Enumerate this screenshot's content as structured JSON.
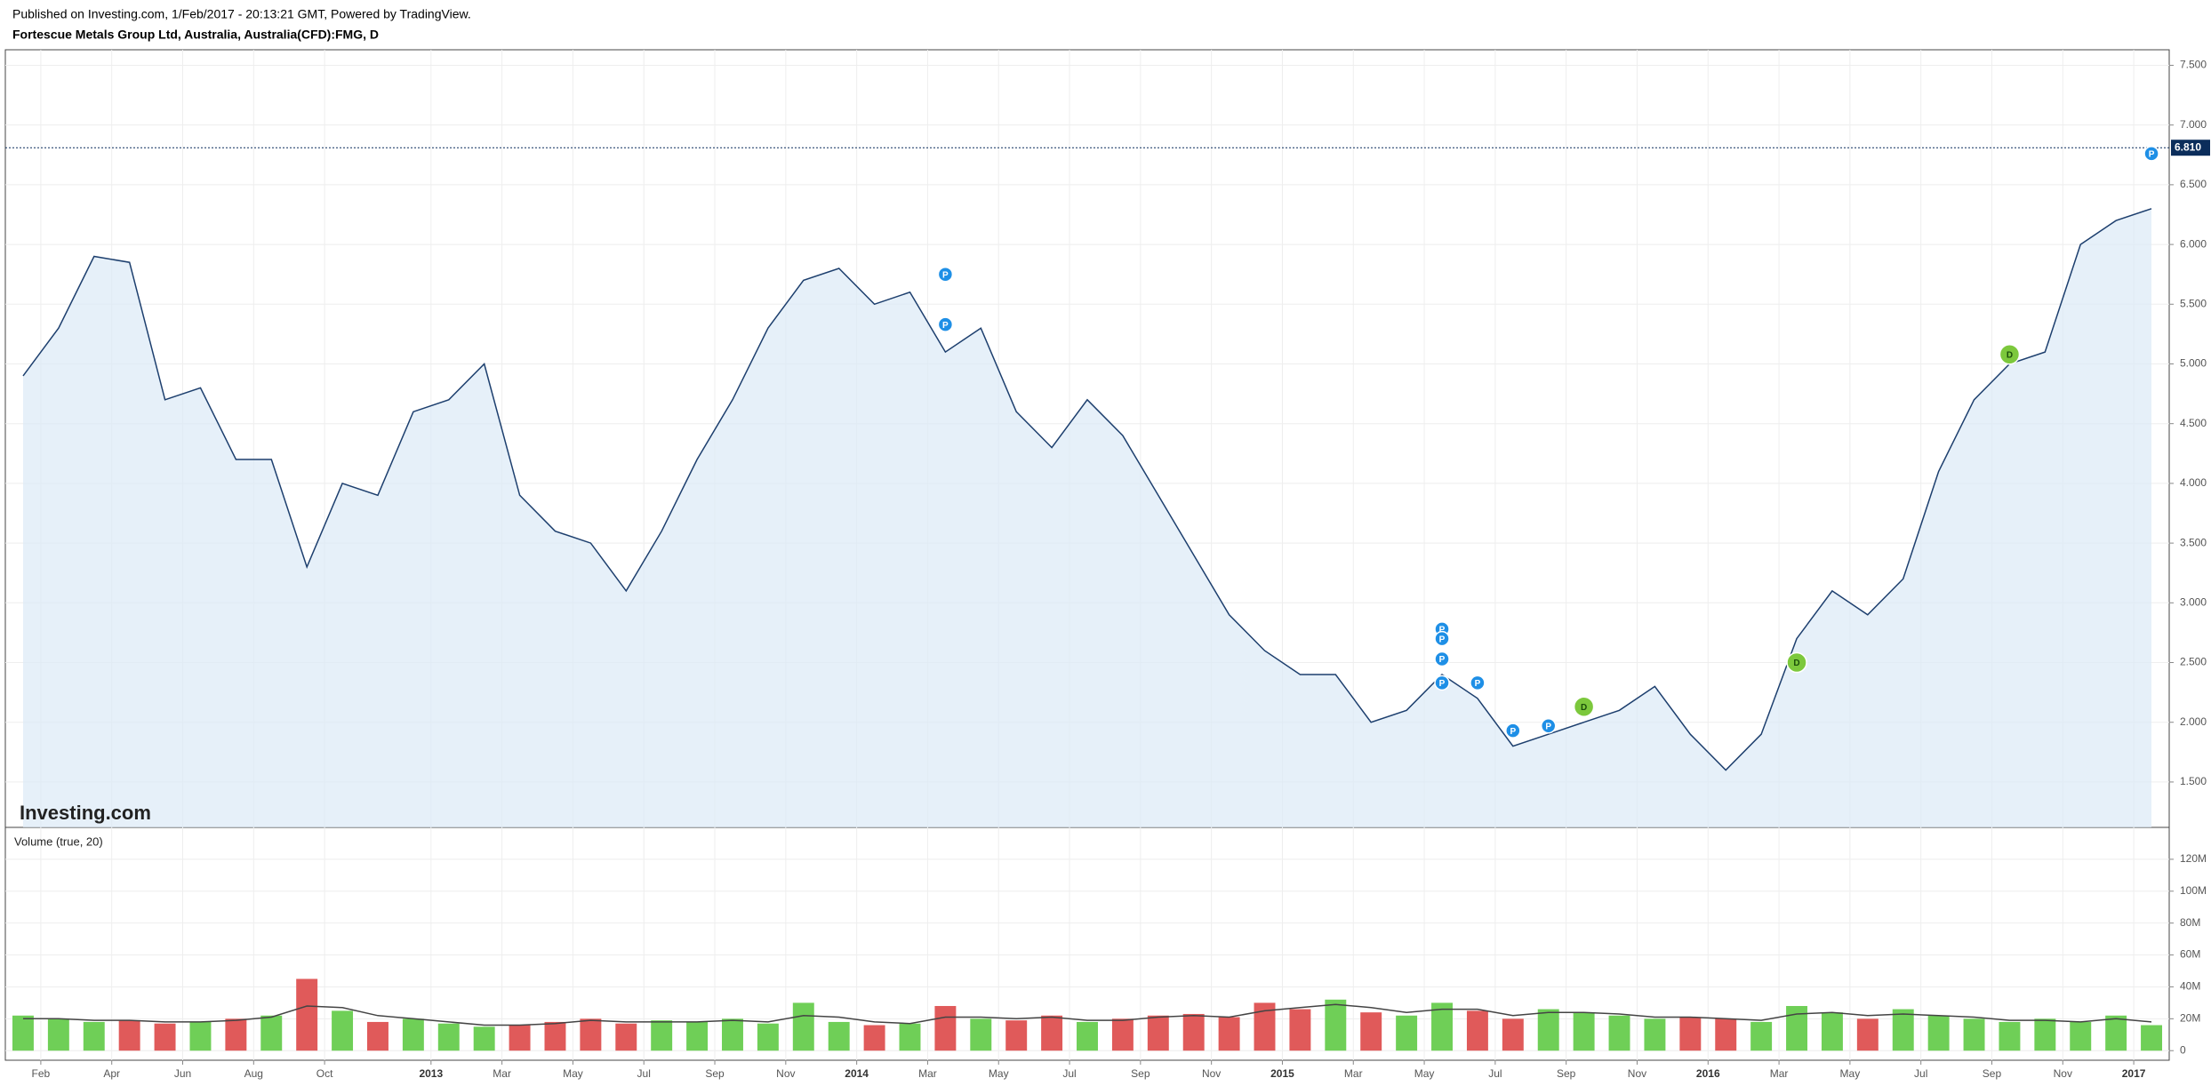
{
  "header": {
    "published": "Published on Investing.com, 1/Feb/2017 - 20:13:21 GMT, Powered by TradingView.",
    "title": "Fortescue Metals Group Ltd, Australia, Australia(CFD):FMG, D"
  },
  "logo": "Investing.com",
  "chart_data": [
    {
      "type": "area",
      "color": "#1d3f6e",
      "fill": "#dce9f7",
      "xlim": [
        "2012-01",
        "2017-02"
      ],
      "x": [
        "2012-01",
        "2012-02",
        "2012-03",
        "2012-04",
        "2012-05",
        "2012-06",
        "2012-07",
        "2012-08",
        "2012-09",
        "2012-10",
        "2012-11",
        "2012-12",
        "2013-01",
        "2013-02",
        "2013-03",
        "2013-04",
        "2013-05",
        "2013-06",
        "2013-07",
        "2013-08",
        "2013-09",
        "2013-10",
        "2013-11",
        "2013-12",
        "2014-01",
        "2014-02",
        "2014-03",
        "2014-04",
        "2014-05",
        "2014-06",
        "2014-07",
        "2014-08",
        "2014-09",
        "2014-10",
        "2014-11",
        "2014-12",
        "2015-01",
        "2015-02",
        "2015-03",
        "2015-04",
        "2015-05",
        "2015-06",
        "2015-07",
        "2015-08",
        "2015-09",
        "2015-10",
        "2015-11",
        "2015-12",
        "2016-01",
        "2016-02",
        "2016-03",
        "2016-04",
        "2016-05",
        "2016-06",
        "2016-07",
        "2016-08",
        "2016-09",
        "2016-10",
        "2016-11",
        "2016-12",
        "2017-01"
      ],
      "values": [
        4.9,
        5.3,
        5.9,
        5.85,
        4.7,
        4.8,
        4.2,
        4.2,
        3.3,
        4.0,
        3.9,
        4.6,
        4.7,
        5.0,
        3.9,
        3.6,
        3.5,
        3.1,
        3.6,
        4.2,
        4.7,
        5.3,
        5.7,
        5.8,
        5.5,
        5.6,
        5.1,
        5.3,
        4.6,
        4.3,
        4.7,
        4.4,
        3.9,
        3.4,
        2.9,
        2.6,
        2.4,
        2.4,
        2.0,
        2.1,
        2.4,
        2.2,
        1.8,
        1.9,
        2.0,
        2.1,
        2.3,
        1.9,
        1.6,
        1.9,
        2.7,
        3.1,
        2.9,
        3.2,
        4.1,
        4.7,
        5.0,
        5.1,
        6.0,
        6.2,
        6.3
      ],
      "ylim": [
        1.12,
        7.63
      ],
      "yticks": [
        {
          "value": 1.5,
          "label": "1.500"
        },
        {
          "value": 2,
          "label": "2.000"
        },
        {
          "value": 2.5,
          "label": "2.500"
        },
        {
          "value": 3,
          "label": "3.000"
        },
        {
          "value": 3.5,
          "label": "3.500"
        },
        {
          "value": 4,
          "label": "4.000"
        },
        {
          "value": 4.5,
          "label": "4.500"
        },
        {
          "value": 5,
          "label": "5.000"
        },
        {
          "value": 5.5,
          "label": "5.500"
        },
        {
          "value": 6,
          "label": "6.000"
        },
        {
          "value": 6.5,
          "label": "6.500"
        },
        {
          "value": 7,
          "label": "7.000"
        },
        {
          "value": 7.5,
          "label": "7.500"
        }
      ],
      "grid": true,
      "price_line": {
        "value": 6.81,
        "label": "6.810",
        "color": "#0b2d5b"
      },
      "events": [
        {
          "x": "2014-03",
          "y": 5.75,
          "label": "P",
          "color": "#1e8fe6"
        },
        {
          "x": "2014-03",
          "y": 5.33,
          "label": "P",
          "color": "#1e8fe6"
        },
        {
          "x": "2015-05",
          "y": 2.78,
          "label": "P",
          "color": "#1e8fe6"
        },
        {
          "x": "2015-05",
          "y": 2.7,
          "label": "P",
          "color": "#1e8fe6"
        },
        {
          "x": "2015-05",
          "y": 2.53,
          "label": "P",
          "color": "#1e8fe6"
        },
        {
          "x": "2015-05",
          "y": 2.33,
          "label": "P",
          "color": "#1e8fe6"
        },
        {
          "x": "2015-06",
          "y": 2.33,
          "label": "P",
          "color": "#1e8fe6"
        },
        {
          "x": "2015-07",
          "y": 1.93,
          "label": "P",
          "color": "#1e8fe6"
        },
        {
          "x": "2015-08",
          "y": 1.97,
          "label": "P",
          "color": "#1e8fe6"
        },
        {
          "x": "2015-09",
          "y": 2.13,
          "label": "D",
          "color": "#7cc83c"
        },
        {
          "x": "2016-03",
          "y": 2.5,
          "label": "D",
          "color": "#7cc83c"
        },
        {
          "x": "2016-09",
          "y": 5.08,
          "label": "D",
          "color": "#7cc83c"
        },
        {
          "x": "2017-01",
          "y": 6.76,
          "label": "P",
          "color": "#1e8fe6"
        }
      ]
    },
    {
      "type": "bar",
      "title": "Volume (true, 20)",
      "up_color": "#6fcf57",
      "down_color": "#e05a5a",
      "ma_color": "#444444",
      "xlim": [
        "2012-01",
        "2017-02"
      ],
      "x": [
        "2012-01",
        "2012-02",
        "2012-03",
        "2012-04",
        "2012-05",
        "2012-06",
        "2012-07",
        "2012-08",
        "2012-09",
        "2012-10",
        "2012-11",
        "2012-12",
        "2013-01",
        "2013-02",
        "2013-03",
        "2013-04",
        "2013-05",
        "2013-06",
        "2013-07",
        "2013-08",
        "2013-09",
        "2013-10",
        "2013-11",
        "2013-12",
        "2014-01",
        "2014-02",
        "2014-03",
        "2014-04",
        "2014-05",
        "2014-06",
        "2014-07",
        "2014-08",
        "2014-09",
        "2014-10",
        "2014-11",
        "2014-12",
        "2015-01",
        "2015-02",
        "2015-03",
        "2015-04",
        "2015-05",
        "2015-06",
        "2015-07",
        "2015-08",
        "2015-09",
        "2015-10",
        "2015-11",
        "2015-12",
        "2016-01",
        "2016-02",
        "2016-03",
        "2016-04",
        "2016-05",
        "2016-06",
        "2016-07",
        "2016-08",
        "2016-09",
        "2016-10",
        "2016-11",
        "2016-12",
        "2017-01"
      ],
      "values": [
        22000000,
        20000000,
        18000000,
        19000000,
        17000000,
        18000000,
        20000000,
        22000000,
        45000000,
        25000000,
        18000000,
        20000000,
        17000000,
        15000000,
        16000000,
        18000000,
        20000000,
        17000000,
        19000000,
        18000000,
        20000000,
        17000000,
        30000000,
        18000000,
        16000000,
        17000000,
        28000000,
        20000000,
        19000000,
        22000000,
        18000000,
        20000000,
        22000000,
        23000000,
        21000000,
        30000000,
        26000000,
        32000000,
        24000000,
        22000000,
        30000000,
        25000000,
        20000000,
        26000000,
        24000000,
        22000000,
        20000000,
        21000000,
        20000000,
        18000000,
        28000000,
        24000000,
        20000000,
        26000000,
        22000000,
        20000000,
        18000000,
        20000000,
        18000000,
        22000000,
        16000000
      ],
      "ma": [
        20000000,
        20000000,
        19000000,
        19000000,
        18000000,
        18000000,
        19000000,
        21000000,
        28000000,
        27000000,
        22000000,
        20000000,
        18000000,
        16000000,
        16000000,
        17000000,
        19000000,
        18000000,
        18000000,
        18000000,
        19000000,
        18000000,
        22000000,
        21000000,
        18000000,
        17000000,
        21000000,
        21000000,
        20000000,
        21000000,
        19000000,
        19000000,
        21000000,
        22000000,
        21000000,
        25000000,
        27000000,
        29000000,
        27000000,
        24000000,
        26000000,
        26000000,
        22000000,
        24000000,
        24000000,
        23000000,
        21000000,
        21000000,
        20000000,
        19000000,
        23000000,
        24000000,
        22000000,
        23000000,
        22000000,
        21000000,
        19000000,
        19000000,
        18000000,
        20000000,
        18000000
      ],
      "ylim": [
        -6000000,
        140000000
      ],
      "yticks": [
        0,
        {
          "value": 20000000,
          "label": "20M"
        },
        {
          "value": 40000000,
          "label": "40M"
        },
        {
          "value": 60000000,
          "label": "60M"
        },
        {
          "value": 80000000,
          "label": "80M"
        },
        {
          "value": 100000000,
          "label": "100M"
        },
        {
          "value": 120000000,
          "label": "120M"
        }
      ],
      "grid": true,
      "xticks": [
        {
          "value": "2012-02",
          "label": "Feb"
        },
        {
          "value": "2012-04",
          "label": "Apr"
        },
        {
          "value": "2012-06",
          "label": "Jun"
        },
        {
          "value": "2012-08",
          "label": "Aug"
        },
        {
          "value": "2012-10",
          "label": "Oct"
        },
        {
          "value": "2013-01",
          "label": "2013"
        },
        {
          "value": "2013-03",
          "label": "Mar"
        },
        {
          "value": "2013-05",
          "label": "May"
        },
        {
          "value": "2013-07",
          "label": "Jul"
        },
        {
          "value": "2013-09",
          "label": "Sep"
        },
        {
          "value": "2013-11",
          "label": "Nov"
        },
        {
          "value": "2014-01",
          "label": "2014"
        },
        {
          "value": "2014-03",
          "label": "Mar"
        },
        {
          "value": "2014-05",
          "label": "May"
        },
        {
          "value": "2014-07",
          "label": "Jul"
        },
        {
          "value": "2014-09",
          "label": "Sep"
        },
        {
          "value": "2014-11",
          "label": "Nov"
        },
        {
          "value": "2015-01",
          "label": "2015"
        },
        {
          "value": "2015-03",
          "label": "Mar"
        },
        {
          "value": "2015-05",
          "label": "May"
        },
        {
          "value": "2015-07",
          "label": "Jul"
        },
        {
          "value": "2015-09",
          "label": "Sep"
        },
        {
          "value": "2015-11",
          "label": "Nov"
        },
        {
          "value": "2016-01",
          "label": "2016"
        },
        {
          "value": "2016-03",
          "label": "Mar"
        },
        {
          "value": "2016-05",
          "label": "May"
        },
        {
          "value": "2016-07",
          "label": "Jul"
        },
        {
          "value": "2016-09",
          "label": "Sep"
        },
        {
          "value": "2016-11",
          "label": "Nov"
        },
        {
          "value": "2017-01",
          "label": "2017"
        }
      ]
    }
  ]
}
